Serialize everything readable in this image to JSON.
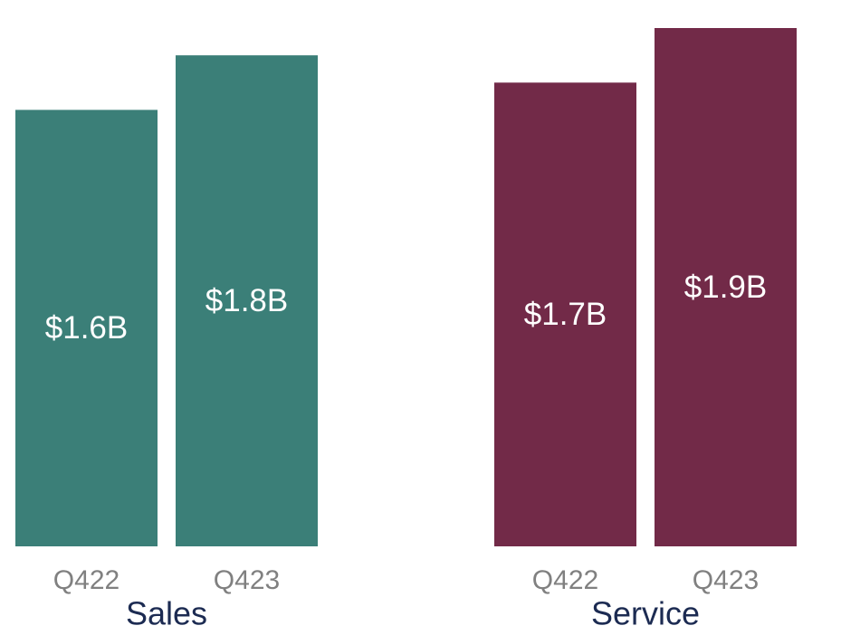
{
  "chart_data": [
    {
      "type": "bar",
      "title": "Sales",
      "categories": [
        "Q422",
        "Q423"
      ],
      "values": [
        1.6,
        1.8
      ],
      "value_labels": [
        "$1.6B",
        "$1.8B"
      ],
      "color": "#3b7f78"
    },
    {
      "type": "bar",
      "title": "Service",
      "categories": [
        "Q422",
        "Q423"
      ],
      "values": [
        1.7,
        1.9
      ],
      "value_labels": [
        "$1.7B",
        "$1.9B"
      ],
      "color": "#722a48"
    }
  ]
}
